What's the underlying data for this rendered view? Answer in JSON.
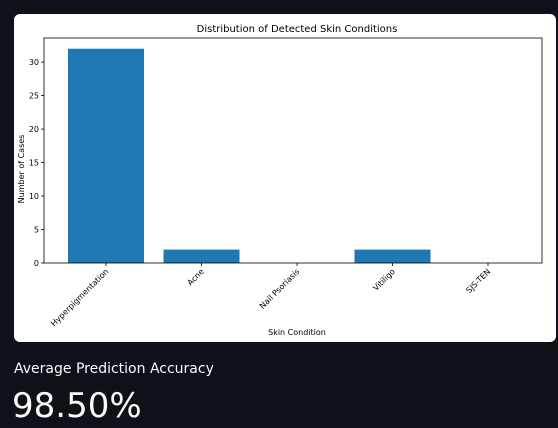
{
  "chart_data": {
    "type": "bar",
    "title": "Distribution of Detected Skin Conditions",
    "xlabel": "Skin Condition",
    "ylabel": "Number of Cases",
    "categories": [
      "Hyperpigmentation",
      "Acne",
      "Nail Psoriasis",
      "Vitiligo",
      "SJS-TEN"
    ],
    "values": [
      32,
      2,
      0,
      2,
      0
    ],
    "ylim": [
      0,
      33.6
    ],
    "yticks": [
      0,
      5,
      10,
      15,
      20,
      25,
      30
    ],
    "grid": false,
    "bar_color": "#1f77b4"
  },
  "metric": {
    "label": "Average Prediction Accuracy",
    "value": "98.50%"
  },
  "theme": {
    "background": "#0e1117",
    "text": "#fafafa"
  }
}
